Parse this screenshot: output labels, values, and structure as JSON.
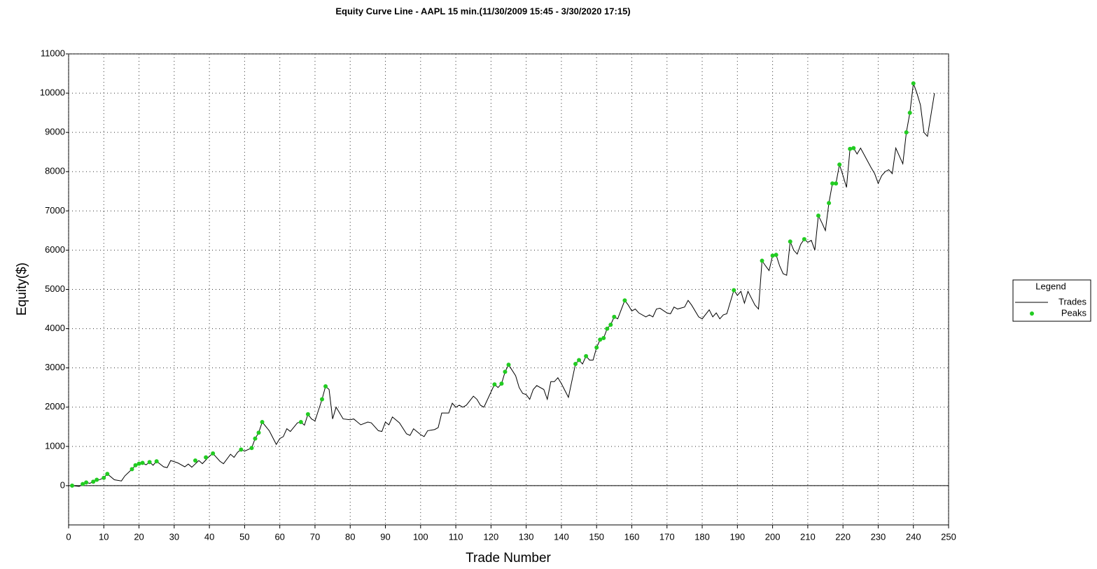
{
  "chart_data": {
    "type": "line",
    "title": "Equity Curve Line - AAPL 15 min.(11/30/2009 15:45 - 3/30/2020 17:15)",
    "x_label": "Trade Number",
    "y_label": "Equity($)",
    "legend_title": "Legend",
    "legend": "right",
    "grid": true,
    "xlim": [
      0,
      250
    ],
    "xticks": [
      0,
      10,
      20,
      30,
      40,
      50,
      60,
      70,
      80,
      90,
      100,
      110,
      120,
      130,
      140,
      150,
      160,
      170,
      180,
      190,
      200,
      210,
      220,
      230,
      240,
      250
    ],
    "ylim": [
      -1000,
      11000
    ],
    "yticks": [
      0,
      1000,
      2000,
      3000,
      4000,
      5000,
      6000,
      7000,
      8000,
      9000,
      10000,
      11000
    ],
    "series": [
      {
        "name": "Trades",
        "color": "#000000",
        "mark": "line",
        "x": [
          1,
          3,
          5,
          6,
          7,
          9,
          10,
          11,
          13,
          15,
          16,
          18,
          19,
          20,
          21,
          22,
          23,
          24,
          25,
          27,
          28,
          29,
          31,
          33,
          34,
          35,
          37,
          38,
          40,
          41,
          43,
          44,
          46,
          47,
          48,
          49,
          50,
          52,
          53,
          54,
          55,
          57,
          59,
          60,
          61,
          62,
          63,
          65,
          66,
          67,
          68,
          69,
          70,
          72,
          73,
          74,
          75,
          76,
          78,
          80,
          81,
          83,
          85,
          86,
          88,
          89,
          90,
          91,
          92,
          94,
          96,
          97,
          98,
          100,
          101,
          102,
          104,
          105,
          106,
          108,
          109,
          110,
          111,
          112,
          113,
          115,
          116,
          117,
          118,
          121,
          122,
          123,
          124,
          125,
          127,
          128,
          129,
          130,
          131,
          132,
          133,
          135,
          136,
          137,
          138,
          139,
          140,
          142,
          144,
          145,
          146,
          147,
          148,
          149,
          150,
          151,
          152,
          153,
          154,
          155,
          156,
          158,
          159,
          160,
          161,
          162,
          164,
          165,
          166,
          167,
          168,
          170,
          171,
          172,
          173,
          175,
          176,
          177,
          179,
          180,
          182,
          183,
          184,
          185,
          186,
          187,
          189,
          190,
          191,
          192,
          193,
          195,
          196,
          197,
          198,
          199,
          200,
          201,
          202,
          203,
          204,
          205,
          206,
          207,
          208,
          209,
          210,
          211,
          212,
          213,
          214,
          215,
          216,
          217,
          218,
          219,
          220,
          221,
          222,
          223,
          224,
          225,
          228,
          229,
          230,
          231,
          232,
          233,
          234,
          235,
          236,
          237,
          238,
          239,
          240,
          241,
          242,
          243,
          244,
          246
        ],
        "values": [
          0,
          -20,
          80,
          60,
          100,
          160,
          200,
          300,
          150,
          120,
          250,
          420,
          520,
          560,
          580,
          530,
          600,
          520,
          620,
          480,
          460,
          640,
          580,
          480,
          550,
          470,
          640,
          560,
          750,
          820,
          620,
          560,
          800,
          720,
          850,
          920,
          880,
          960,
          1200,
          1350,
          1620,
          1400,
          1050,
          1200,
          1250,
          1450,
          1380,
          1600,
          1620,
          1540,
          1820,
          1700,
          1650,
          2200,
          2530,
          2450,
          1700,
          2000,
          1700,
          1680,
          1700,
          1550,
          1620,
          1600,
          1400,
          1380,
          1620,
          1550,
          1750,
          1600,
          1320,
          1280,
          1450,
          1300,
          1250,
          1400,
          1430,
          1480,
          1850,
          1850,
          2100,
          2000,
          2050,
          2000,
          2050,
          2280,
          2200,
          2050,
          2000,
          2580,
          2500,
          2600,
          2900,
          3080,
          2800,
          2500,
          2350,
          2320,
          2200,
          2450,
          2550,
          2450,
          2200,
          2650,
          2650,
          2750,
          2600,
          2250,
          3100,
          3200,
          3100,
          3300,
          3200,
          3200,
          3520,
          3720,
          3760,
          4000,
          4100,
          4300,
          4250,
          4720,
          4600,
          4450,
          4500,
          4400,
          4300,
          4350,
          4300,
          4500,
          4520,
          4400,
          4380,
          4550,
          4500,
          4550,
          4720,
          4600,
          4300,
          4250,
          4480,
          4300,
          4400,
          4250,
          4350,
          4380,
          4980,
          4850,
          4950,
          4650,
          4950,
          4600,
          4500,
          5730,
          5600,
          5480,
          5860,
          5880,
          5600,
          5400,
          5360,
          6220,
          6000,
          5900,
          6150,
          6280,
          6200,
          6250,
          6000,
          6880,
          6700,
          6500,
          7200,
          7700,
          7700,
          8180,
          7900,
          7600,
          8580,
          8600,
          8450,
          8600,
          8100,
          7950,
          7700,
          7900,
          8000,
          8050,
          7950,
          8600,
          8400,
          8200,
          9000,
          9500,
          10250,
          10000,
          9700,
          9000,
          8900,
          10000
        ]
      },
      {
        "name": "Peaks",
        "color": "#22cc22",
        "mark": "dot",
        "x": [
          1,
          4,
          5,
          7,
          8,
          10,
          11,
          18,
          19,
          20,
          21,
          23,
          25,
          36,
          39,
          41,
          49,
          52,
          53,
          54,
          55,
          66,
          68,
          72,
          73,
          121,
          123,
          124,
          125,
          144,
          145,
          147,
          150,
          151,
          152,
          153,
          154,
          155,
          158,
          189,
          197,
          200,
          201,
          205,
          209,
          213,
          216,
          217,
          218,
          219,
          222,
          223,
          238,
          239,
          240
        ],
        "values": [
          0,
          40,
          80,
          100,
          150,
          200,
          300,
          420,
          520,
          560,
          580,
          600,
          620,
          640,
          720,
          820,
          920,
          960,
          1200,
          1350,
          1620,
          1620,
          1820,
          2200,
          2530,
          2580,
          2600,
          2900,
          3080,
          3100,
          3200,
          3300,
          3520,
          3720,
          3760,
          4000,
          4100,
          4300,
          4720,
          4980,
          5730,
          5860,
          5880,
          6220,
          6280,
          6880,
          7200,
          7700,
          7700,
          8180,
          8580,
          8600,
          9000,
          9500,
          10250
        ]
      }
    ]
  }
}
